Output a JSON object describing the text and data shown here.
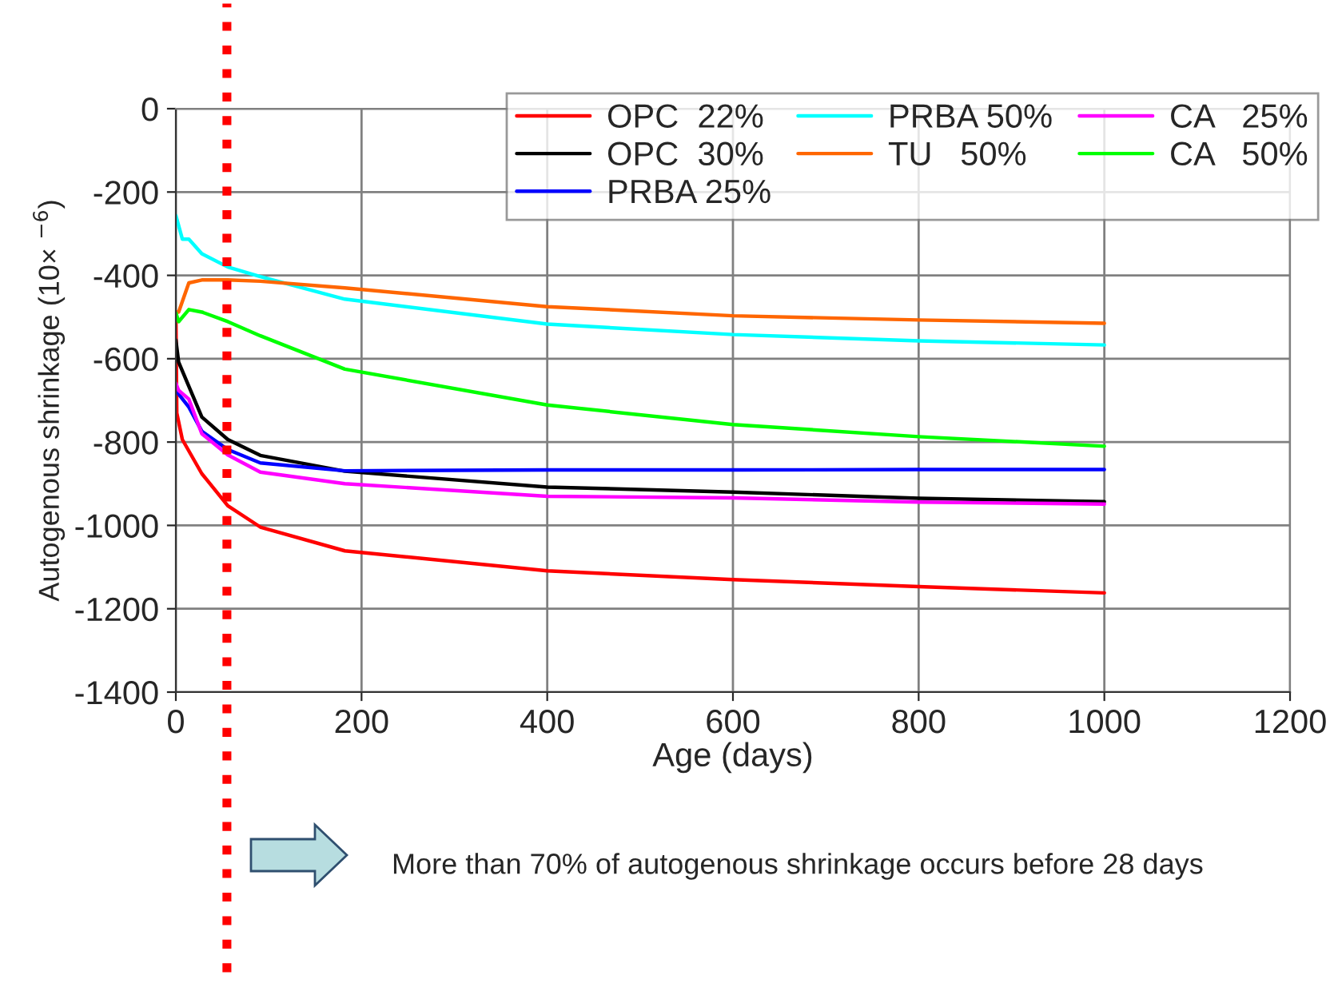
{
  "chart_data": {
    "type": "line",
    "xlabel": "Age (days)",
    "ylabel": "Autogenous shrinkage (10× $^{−6}$)",
    "xlim": [
      0,
      1200
    ],
    "xticks": [
      0,
      200,
      400,
      600,
      800,
      1000,
      1200
    ],
    "ylim": [
      -1400,
      0
    ],
    "yticks": [
      -1400,
      -1200,
      -1000,
      -800,
      -600,
      -400,
      -200,
      0
    ],
    "grid": true,
    "legend": "top right",
    "marker": "none",
    "line_style": "solid",
    "series": [
      {
        "name": "OPC  22%",
        "color": "#ff0000",
        "x": [
          0,
          1,
          7,
          28,
          56,
          91,
          182,
          400,
          600,
          800,
          1000
        ],
        "values": [
          -488,
          -730,
          -794,
          -876,
          -953,
          -1004,
          -1061,
          -1109,
          -1130,
          -1147,
          -1162
        ]
      },
      {
        "name": "OPC  30%",
        "color": "#000000",
        "x": [
          0,
          3,
          14,
          28,
          56,
          91,
          182,
          400,
          600,
          800,
          1000
        ],
        "values": [
          -555,
          -608,
          -666,
          -740,
          -794,
          -832,
          -870,
          -908,
          -920,
          -935,
          -943
        ]
      },
      {
        "name": "PRBA 25%",
        "color": "#0000ff",
        "x": [
          0,
          3,
          14,
          28,
          56,
          91,
          182,
          400,
          600,
          800,
          1000
        ],
        "values": [
          -663,
          -685,
          -716,
          -774,
          -818,
          -850,
          -869,
          -867,
          -867,
          -866,
          -866
        ]
      },
      {
        "name": "PRBA 50%",
        "color": "#00ffff",
        "x": [
          0,
          7,
          14,
          28,
          56,
          91,
          182,
          400,
          600,
          800,
          1000
        ],
        "values": [
          -256,
          -313,
          -313,
          -348,
          -380,
          -403,
          -457,
          -517,
          -542,
          -557,
          -567
        ]
      },
      {
        "name": "TU   50%",
        "color": "#ff6600",
        "x": [
          0,
          3,
          14,
          28,
          56,
          91,
          182,
          400,
          600,
          800,
          1000
        ],
        "values": [
          -488,
          -488,
          -418,
          -411,
          -411,
          -414,
          -430,
          -475,
          -497,
          -507,
          -515
        ]
      },
      {
        "name": "CA   25%",
        "color": "#ff00ff",
        "x": [
          0,
          3,
          14,
          28,
          56,
          91,
          182,
          400,
          600,
          800,
          1000
        ],
        "values": [
          -659,
          -676,
          -697,
          -780,
          -831,
          -872,
          -900,
          -930,
          -934,
          -944,
          -949
        ]
      },
      {
        "name": "CA   50%",
        "color": "#00ff00",
        "x": [
          0,
          3,
          14,
          28,
          56,
          91,
          182,
          400,
          600,
          800,
          1000
        ],
        "values": [
          -490,
          -511,
          -482,
          -488,
          -511,
          -545,
          -625,
          -711,
          -758,
          -787,
          -810
        ]
      }
    ],
    "ref_lines": [
      {
        "axis": "x",
        "value": 55,
        "color": "#ff0000",
        "line_style": "dotted"
      }
    ],
    "annotations": [
      "More than 70% of autogenous shrinkage occurs before 28 days"
    ]
  }
}
